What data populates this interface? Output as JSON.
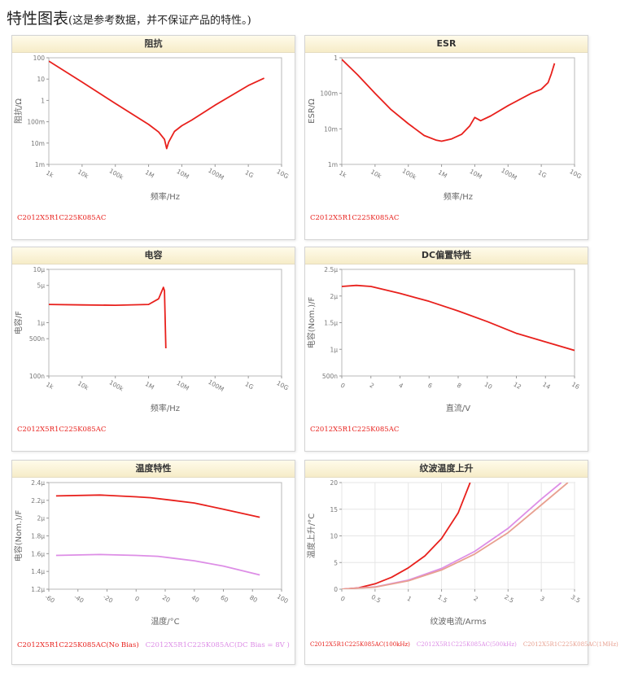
{
  "page": {
    "title": "特性图表",
    "subtitle": "(这是参考数据，并不保证产品的特性。)"
  },
  "chart_data": [
    {
      "id": "impedance",
      "type": "line",
      "title": "阻抗",
      "xlabel": "频率/Hz",
      "ylabel": "阻抗/Ω",
      "xscale": "log",
      "yscale": "log",
      "xlim": [
        1000,
        10000000000
      ],
      "ylim": [
        0.001,
        100
      ],
      "xticks": [
        1000,
        10000,
        100000,
        1000000,
        10000000,
        100000000,
        1000000000,
        10000000000
      ],
      "xticklabels": [
        "1k",
        "10k",
        "100k",
        "1M",
        "10M",
        "100M",
        "1G",
        "10G"
      ],
      "yticks": [
        0.001,
        0.01,
        0.1,
        1,
        10,
        100
      ],
      "yticklabels": [
        "1m",
        "10m",
        "100m",
        "1",
        "10",
        "100"
      ],
      "grid": false,
      "series": [
        {
          "color": "#e8201c",
          "points": [
            [
              1000,
              70
            ],
            [
              10000,
              7.2
            ],
            [
              100000,
              0.72
            ],
            [
              1000000,
              0.075
            ],
            [
              2000000,
              0.033
            ],
            [
              3000000,
              0.015
            ],
            [
              3500000,
              0.0055
            ],
            [
              4000000,
              0.011
            ],
            [
              6000000,
              0.035
            ],
            [
              10000000,
              0.065
            ],
            [
              20000000,
              0.12
            ],
            [
              100000000,
              0.6
            ],
            [
              1000000000,
              5
            ],
            [
              3000000000,
              11
            ]
          ]
        }
      ],
      "legend": [
        {
          "label": "C2012X5R1C225K085AC",
          "color": "#e8201c"
        }
      ]
    },
    {
      "id": "esr",
      "type": "line",
      "title": "ESR",
      "xlabel": "频率/Hz",
      "ylabel": "ESR/Ω",
      "xscale": "log",
      "yscale": "log",
      "xlim": [
        1000,
        10000000000
      ],
      "ylim": [
        0.001,
        1
      ],
      "xticks": [
        1000,
        10000,
        100000,
        1000000,
        10000000,
        100000000,
        1000000000,
        10000000000
      ],
      "xticklabels": [
        "1k",
        "10k",
        "100k",
        "1M",
        "10M",
        "100M",
        "1G",
        "10G"
      ],
      "yticks": [
        0.001,
        0.01,
        0.1,
        1
      ],
      "yticklabels": [
        "1m",
        "10m",
        "100m",
        "1"
      ],
      "grid": false,
      "series": [
        {
          "color": "#e8201c",
          "points": [
            [
              1000,
              0.9
            ],
            [
              3000,
              0.33
            ],
            [
              10000,
              0.1
            ],
            [
              30000,
              0.035
            ],
            [
              100000,
              0.014
            ],
            [
              300000,
              0.0065
            ],
            [
              700000,
              0.0048
            ],
            [
              1000000,
              0.0045
            ],
            [
              2000000,
              0.0052
            ],
            [
              4000000,
              0.007
            ],
            [
              7000000,
              0.012
            ],
            [
              10000000,
              0.021
            ],
            [
              15000000,
              0.017
            ],
            [
              30000000,
              0.023
            ],
            [
              100000000,
              0.045
            ],
            [
              500000000,
              0.1
            ],
            [
              1000000000,
              0.13
            ],
            [
              1600000000,
              0.2
            ],
            [
              2000000000,
              0.35
            ],
            [
              2500000000,
              0.7
            ]
          ]
        }
      ],
      "legend": [
        {
          "label": "C2012X5R1C225K085AC",
          "color": "#e8201c"
        }
      ]
    },
    {
      "id": "capacitance",
      "type": "line",
      "title": "电容",
      "xlabel": "频率/Hz",
      "ylabel": "电容/F",
      "xscale": "log",
      "yscale": "log",
      "xlim": [
        1000,
        10000000000
      ],
      "ylim": [
        1e-07,
        1e-05
      ],
      "xticks": [
        1000,
        10000,
        100000,
        1000000,
        10000000,
        100000000,
        1000000000,
        10000000000
      ],
      "xticklabels": [
        "1k",
        "10k",
        "100k",
        "1M",
        "10M",
        "100M",
        "1G",
        "10G"
      ],
      "yticks": [
        1e-07,
        5e-07,
        1e-06,
        5e-06,
        1e-05
      ],
      "yticklabels": [
        "100n",
        "500n",
        "1μ",
        "5μ",
        "10μ"
      ],
      "grid": false,
      "series": [
        {
          "color": "#e8201c",
          "points": [
            [
              1000,
              2.2e-06
            ],
            [
              10000,
              2.15e-06
            ],
            [
              100000,
              2.12e-06
            ],
            [
              1000000,
              2.2e-06
            ],
            [
              2000000,
              2.8e-06
            ],
            [
              2800000,
              4.6e-06
            ],
            [
              3000000,
              4e-06
            ],
            [
              3200000,
              8e-07
            ],
            [
              3300000,
              3.3e-07
            ]
          ]
        }
      ],
      "legend": [
        {
          "label": "C2012X5R1C225K085AC",
          "color": "#e8201c"
        }
      ]
    },
    {
      "id": "dc_bias",
      "type": "line",
      "title": "DC偏置特性",
      "xlabel": "直流/V",
      "ylabel": "电容(Nom.)/F",
      "xscale": "linear",
      "yscale": "linear",
      "xlim": [
        0,
        16
      ],
      "ylim": [
        5e-07,
        2.5e-06
      ],
      "xticks": [
        0,
        2,
        4,
        6,
        8,
        10,
        12,
        14,
        16
      ],
      "xticklabels": [
        "0",
        "2",
        "4",
        "6",
        "8",
        "10",
        "12",
        "14",
        "16"
      ],
      "yticks": [
        5e-07,
        1e-06,
        1.5e-06,
        2e-06,
        2.5e-06
      ],
      "yticklabels": [
        "500n",
        "1μ",
        "1.5μ",
        "2μ",
        "2.5μ"
      ],
      "grid": false,
      "series": [
        {
          "color": "#e8201c",
          "points": [
            [
              0,
              2.18e-06
            ],
            [
              1,
              2.2e-06
            ],
            [
              2,
              2.18e-06
            ],
            [
              4,
              2.05e-06
            ],
            [
              6,
              1.9e-06
            ],
            [
              8,
              1.72e-06
            ],
            [
              10,
              1.52e-06
            ],
            [
              12,
              1.3e-06
            ],
            [
              14,
              1.14e-06
            ],
            [
              16,
              9.8e-07
            ]
          ]
        }
      ],
      "legend": [
        {
          "label": "C2012X5R1C225K085AC",
          "color": "#e8201c"
        }
      ]
    },
    {
      "id": "temperature",
      "type": "line",
      "title": "温度特性",
      "xlabel": "温度/°C",
      "ylabel": "电容(Nom.)/F",
      "xscale": "linear",
      "yscale": "linear",
      "xlim": [
        -60,
        100
      ],
      "ylim": [
        1.2e-06,
        2.4e-06
      ],
      "xticks": [
        -60,
        -40,
        -20,
        0,
        20,
        40,
        60,
        80,
        100
      ],
      "xticklabels": [
        "-60",
        "-40",
        "-20",
        "0",
        "20",
        "40",
        "60",
        "80",
        "100"
      ],
      "yticks": [
        1.2e-06,
        1.4e-06,
        1.6e-06,
        1.8e-06,
        2e-06,
        2.2e-06,
        2.4e-06
      ],
      "yticklabels": [
        "1.2μ",
        "1.4μ",
        "1.6μ",
        "1.8μ",
        "2μ",
        "2.2μ",
        "2.4μ"
      ],
      "grid": false,
      "series": [
        {
          "color": "#e8201c",
          "points": [
            [
              -55,
              2.25e-06
            ],
            [
              -25,
              2.26e-06
            ],
            [
              0,
              2.24e-06
            ],
            [
              10,
              2.23e-06
            ],
            [
              25,
              2.2e-06
            ],
            [
              40,
              2.17e-06
            ],
            [
              60,
              2.1e-06
            ],
            [
              85,
              2.01e-06
            ]
          ]
        },
        {
          "color": "#dd8ee6",
          "points": [
            [
              -55,
              1.58e-06
            ],
            [
              -25,
              1.59e-06
            ],
            [
              0,
              1.58e-06
            ],
            [
              15,
              1.57e-06
            ],
            [
              25,
              1.55e-06
            ],
            [
              40,
              1.52e-06
            ],
            [
              60,
              1.46e-06
            ],
            [
              85,
              1.36e-06
            ]
          ]
        }
      ],
      "legend": [
        {
          "label": "C2012X5R1C225K085AC(No Bias)",
          "color": "#e8201c"
        },
        {
          "label": "C2012X5R1C225K085AC(DC Bias = 8V )",
          "color": "#dd8ee6"
        }
      ]
    },
    {
      "id": "ripple_temp_rise",
      "type": "line",
      "title": "纹波温度上升",
      "xlabel": "纹波电流/Arms",
      "ylabel": "温度上升/°C",
      "xscale": "linear",
      "yscale": "linear",
      "xlim": [
        0,
        3.5
      ],
      "ylim": [
        0,
        20
      ],
      "xticks": [
        0,
        0.5,
        1,
        1.5,
        2,
        2.5,
        3,
        3.5
      ],
      "xticklabels": [
        "0",
        "0.5",
        "1",
        "1.5",
        "2",
        "2.5",
        "3",
        "3.5"
      ],
      "yticks": [
        0,
        5,
        10,
        15,
        20
      ],
      "yticklabels": [
        "0",
        "5",
        "10",
        "15",
        "20"
      ],
      "grid": true,
      "series": [
        {
          "color": "#e8201c",
          "points": [
            [
              0,
              0
            ],
            [
              0.25,
              0.25
            ],
            [
              0.5,
              1
            ],
            [
              0.75,
              2.25
            ],
            [
              1,
              4
            ],
            [
              1.25,
              6.25
            ],
            [
              1.5,
              9.5
            ],
            [
              1.75,
              14.3
            ],
            [
              1.93,
              20
            ]
          ]
        },
        {
          "color": "#dd8ee6",
          "points": [
            [
              0,
              0
            ],
            [
              0.5,
              0.42
            ],
            [
              1,
              1.7
            ],
            [
              1.5,
              3.9
            ],
            [
              2,
              7.1
            ],
            [
              2.5,
              11.4
            ],
            [
              3,
              16.9
            ],
            [
              3.3,
              20
            ]
          ]
        },
        {
          "color": "#e8a090",
          "points": [
            [
              0,
              0
            ],
            [
              0.5,
              0.38
            ],
            [
              1,
              1.55
            ],
            [
              1.5,
              3.6
            ],
            [
              2,
              6.6
            ],
            [
              2.5,
              10.6
            ],
            [
              3,
              15.8
            ],
            [
              3.4,
              20
            ]
          ]
        }
      ],
      "legend": [
        {
          "label": "C2012X5R1C225K085AC(100kHz)",
          "color": "#e8201c"
        },
        {
          "label": "C2012X5R1C225K085AC(500kHz)",
          "color": "#dd8ee6"
        },
        {
          "label": "C2012X5R1C225K085AC(1MHz)",
          "color": "#e8a090"
        }
      ]
    }
  ]
}
